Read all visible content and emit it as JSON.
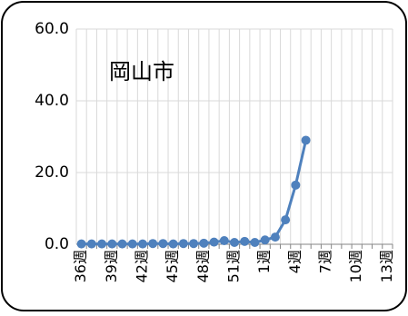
{
  "chart_data": {
    "type": "line",
    "title": "岡山市",
    "categories": [
      "36週",
      null,
      null,
      "39週",
      null,
      null,
      "42週",
      null,
      null,
      "45週",
      null,
      null,
      "48週",
      null,
      null,
      "51週",
      null,
      null,
      "1週",
      null,
      null,
      "4週",
      null,
      null,
      "7週",
      null,
      null,
      "10週",
      null,
      null,
      "13週"
    ],
    "series": [
      {
        "color": "#4f81bd",
        "values": [
          0.1,
          0.1,
          0.1,
          0.1,
          0.1,
          0.1,
          0.1,
          0.2,
          0.2,
          0.1,
          0.2,
          0.2,
          0.3,
          0.6,
          1.0,
          0.5,
          0.8,
          0.5,
          1.2,
          2.0,
          6.8,
          16.5,
          29.0,
          null,
          null,
          null,
          null,
          null,
          null,
          null,
          null
        ]
      }
    ],
    "ylim": [
      0,
      60
    ],
    "yticks": [
      {
        "value": 0,
        "label": "0.0"
      },
      {
        "value": 20,
        "label": "20.0"
      },
      {
        "value": 40,
        "label": "40.0"
      },
      {
        "value": 60,
        "label": "60.0"
      }
    ],
    "grid": true
  }
}
